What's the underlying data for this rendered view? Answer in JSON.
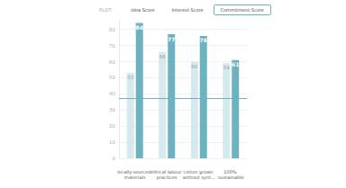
{
  "chart_data": {
    "type": "bar",
    "categories": [
      "locally-sourced materials",
      "ethical labour practices",
      "cotton grown without synt...",
      "100% sustainable"
    ],
    "series": [
      {
        "color": "#d6e9ee",
        "values": [
          53,
          66,
          60,
          59
        ]
      },
      {
        "color": "#6db3bf",
        "values": [
          84,
          77,
          76,
          61
        ]
      }
    ],
    "ylim": [
      0,
      86
    ],
    "yticks": [
      0,
      10,
      20,
      30,
      40,
      50,
      60,
      70,
      80
    ],
    "grid": true,
    "data_labels": true,
    "reference_line": 37
  },
  "controls": {
    "label": "PLOT:",
    "options": [
      "Idea Score",
      "Interest Score",
      "Commitment Score"
    ],
    "selected": "Commitment Score"
  }
}
